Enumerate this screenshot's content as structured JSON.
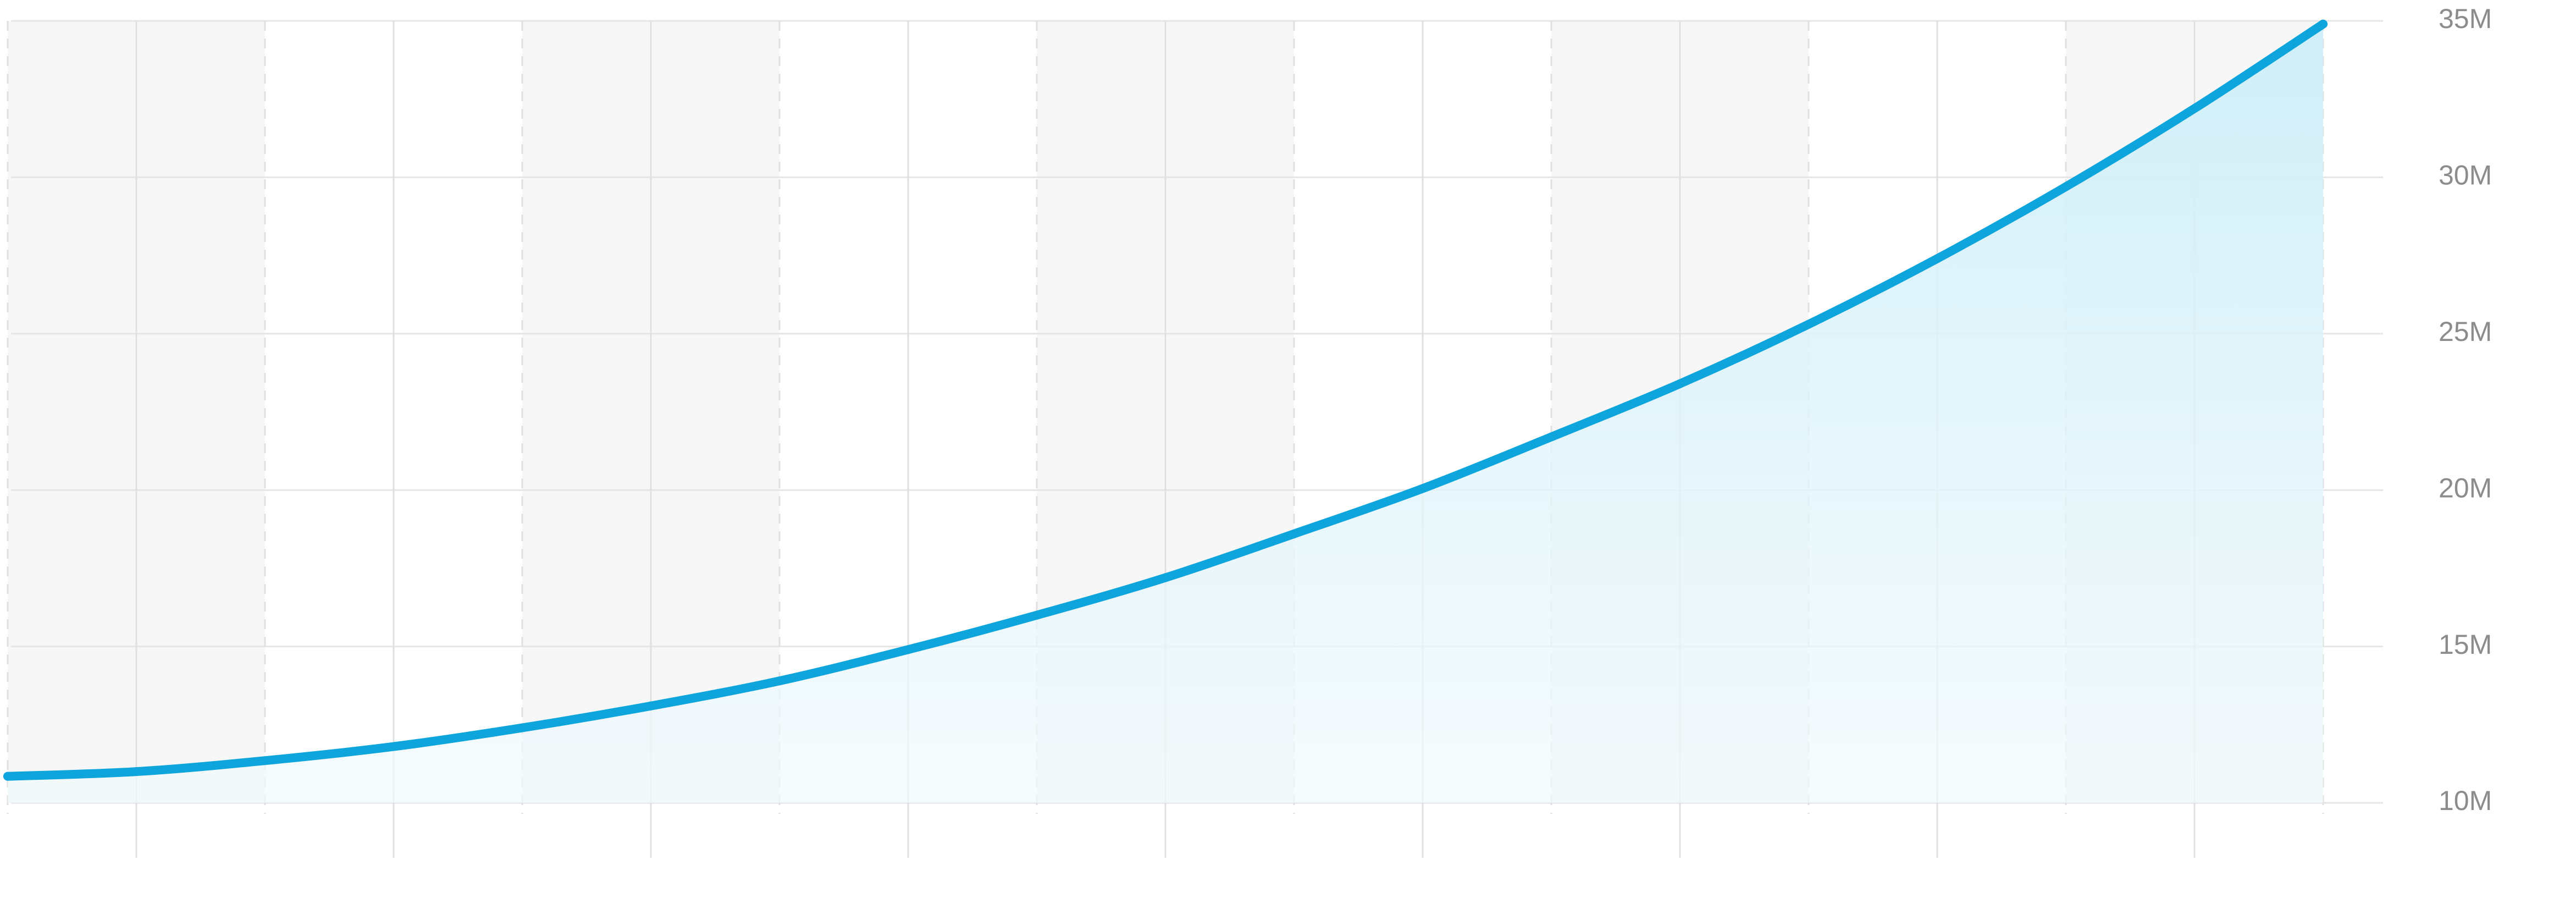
{
  "chart_data": {
    "type": "area",
    "title": "",
    "xlabel": "",
    "ylabel": "",
    "x_tick_count": 19,
    "x_range": [
      0,
      18
    ],
    "ylim": [
      10000000,
      35000000
    ],
    "y_ticks": [
      10000000,
      15000000,
      20000000,
      25000000,
      30000000,
      35000000
    ],
    "y_tick_labels": [
      "10M",
      "15M",
      "20M",
      "25M",
      "30M",
      "35M"
    ],
    "grid": true,
    "shaded_bands": [
      [
        0,
        2
      ],
      [
        4,
        6
      ],
      [
        8,
        10
      ],
      [
        12,
        14
      ],
      [
        16,
        18
      ]
    ],
    "series": [
      {
        "x": [
          0,
          1,
          2,
          3,
          4,
          5,
          6,
          7,
          8,
          9,
          10,
          11,
          12,
          13,
          14,
          15,
          16,
          17,
          18
        ],
        "values": [
          10850000,
          11000000,
          11350000,
          11800000,
          12400000,
          13100000,
          13900000,
          14900000,
          16000000,
          17200000,
          18600000,
          20050000,
          21700000,
          23400000,
          25300000,
          27400000,
          29700000,
          32200000,
          34900000
        ]
      }
    ],
    "colors": {
      "line": "#0ea5dc",
      "area_top": "#cdeef8",
      "area_bottom": "#f1fafd",
      "band": "#f7f7f7",
      "grid_h": "#e6e6e6",
      "grid_v": "#e0e0e0",
      "tick_text": "#8c8c8c"
    }
  }
}
